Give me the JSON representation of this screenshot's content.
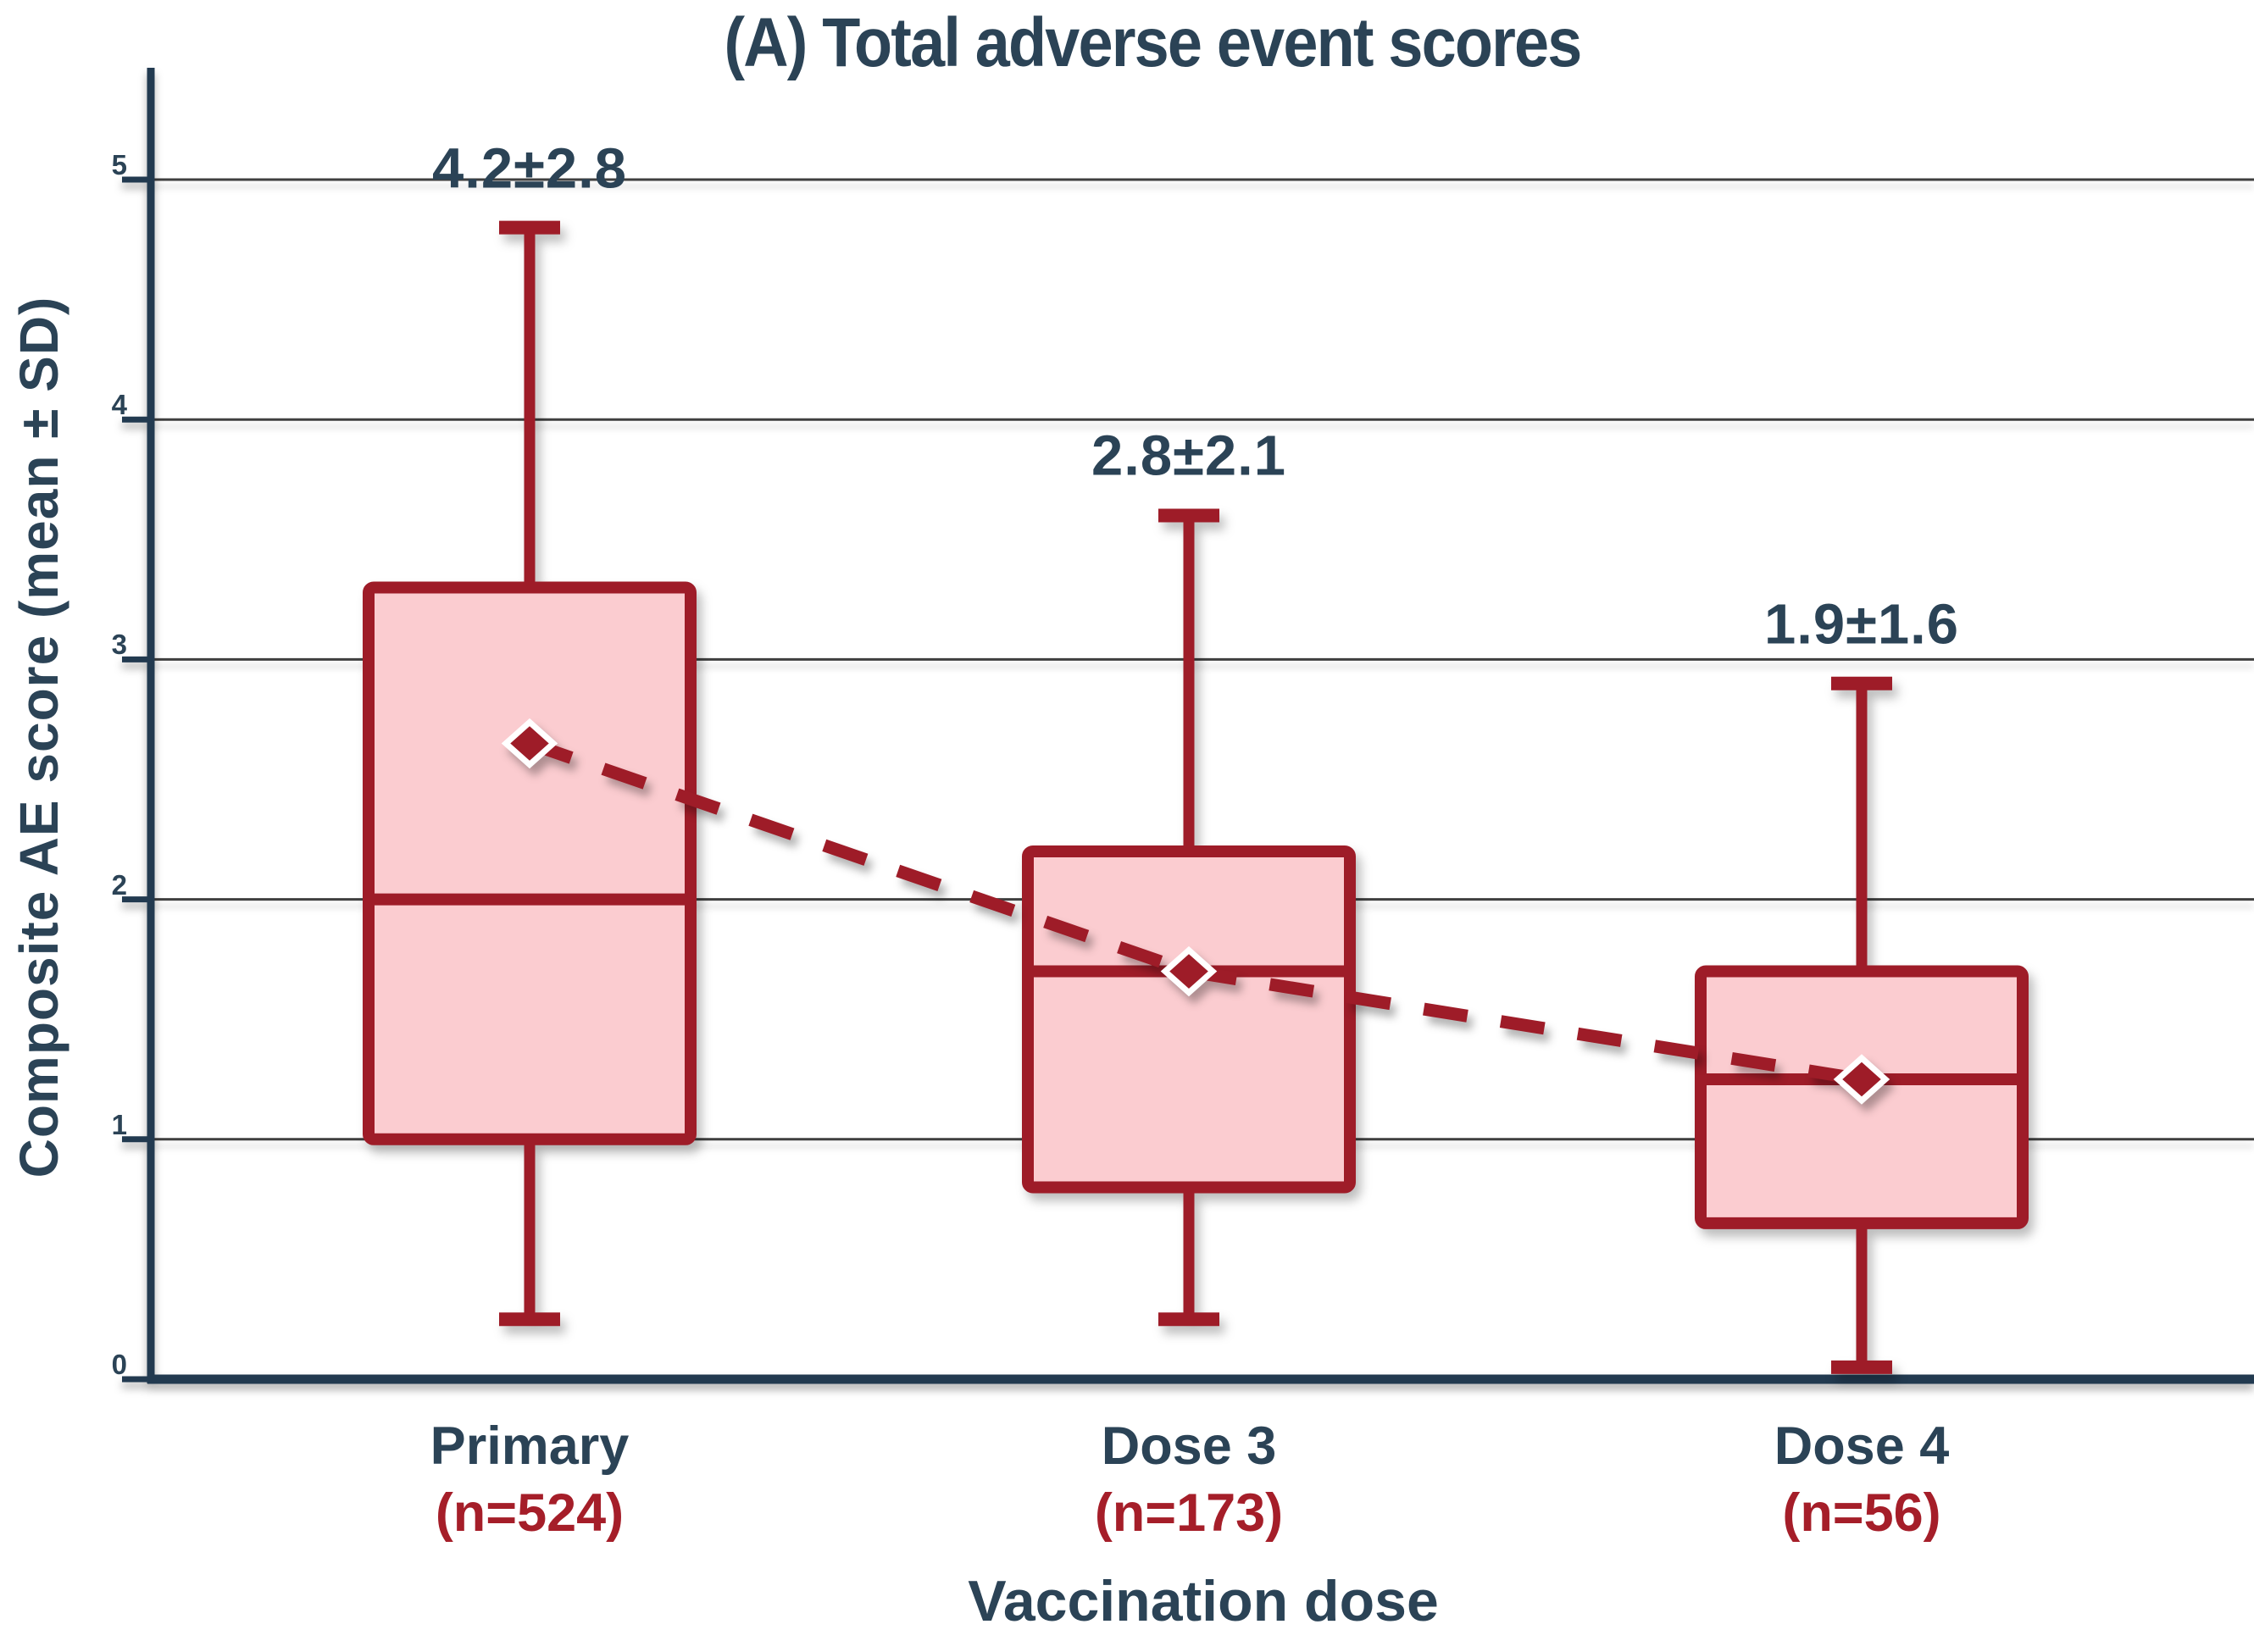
{
  "title": "(A) Total adverse event scores",
  "y_axis": {
    "label": "Composite AE score (mean ± SD)",
    "tick_labels": [
      "0",
      "1",
      "2",
      "3",
      "4",
      "5"
    ]
  },
  "x_axis": {
    "label": "Vaccination dose"
  },
  "colors": {
    "navy_text": "#2b4356",
    "axis_navy": "#223a50",
    "red_line": "#9e1c28",
    "red_text": "#a51e29",
    "box_fill": "#fbccd0",
    "gridline_gray": "#3f3f3f",
    "marker_outline": "#ffffff",
    "background": "#ffffff"
  },
  "chart_data": {
    "type": "boxplot",
    "title": "(A) Total adverse event scores",
    "xlabel": "Vaccination dose",
    "ylabel": "Composite AE score (mean ± SD)",
    "ylim": [
      0,
      5
    ],
    "yticks": [
      0,
      1,
      2,
      3,
      4,
      5
    ],
    "grid": true,
    "categories": [
      "Primary",
      "Dose 3",
      "Dose 4"
    ],
    "sample_size_labels": [
      "(n=524)",
      "(n=173)",
      "(n=56)"
    ],
    "mean_sd_annotations": [
      "4.2±2.8",
      "2.8±2.1",
      "1.9±1.6"
    ],
    "series": [
      {
        "name": "Primary",
        "n": 524,
        "mean_sd_label": "4.2±2.8",
        "whisker_low": 0.25,
        "q1": 1.0,
        "median": 2.0,
        "q3": 3.3,
        "whisker_high": 4.8,
        "trend_marker": 2.65
      },
      {
        "name": "Dose 3",
        "n": 173,
        "mean_sd_label": "2.8±2.1",
        "whisker_low": 0.25,
        "q1": 0.8,
        "median": 1.7,
        "q3": 2.2,
        "whisker_high": 3.6,
        "trend_marker": 1.7
      },
      {
        "name": "Dose 4",
        "n": 56,
        "mean_sd_label": "1.9±1.6",
        "whisker_low": 0.05,
        "q1": 0.65,
        "median": 1.25,
        "q3": 1.7,
        "whisker_high": 2.9,
        "trend_marker": 1.25
      }
    ],
    "trend_line": {
      "style": "dashed",
      "marker": "diamond",
      "values": [
        2.65,
        1.7,
        1.25
      ]
    }
  }
}
